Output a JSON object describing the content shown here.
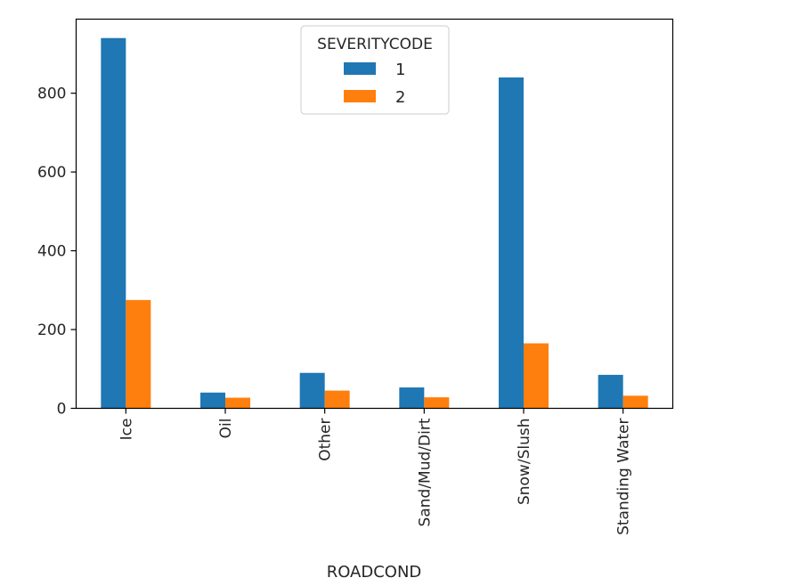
{
  "chart_data": {
    "type": "bar",
    "xlabel": "ROADCOND",
    "ylabel": "",
    "categories": [
      "Ice",
      "Oil",
      "Other",
      "Sand/Mud/Dirt",
      "Snow/Slush",
      "Standing Water"
    ],
    "series": [
      {
        "name": "1",
        "color": "#1f77b4",
        "values": [
          940,
          40,
          90,
          53,
          840,
          85
        ]
      },
      {
        "name": "2",
        "color": "#ff7f0e",
        "values": [
          275,
          27,
          45,
          28,
          165,
          32
        ]
      }
    ],
    "ylim": [
      0,
      988
    ],
    "yticks": [
      0,
      200,
      400,
      600,
      800
    ],
    "legend": {
      "title": "SEVERITYCODE",
      "placement": "top-center"
    },
    "grid": false
  }
}
